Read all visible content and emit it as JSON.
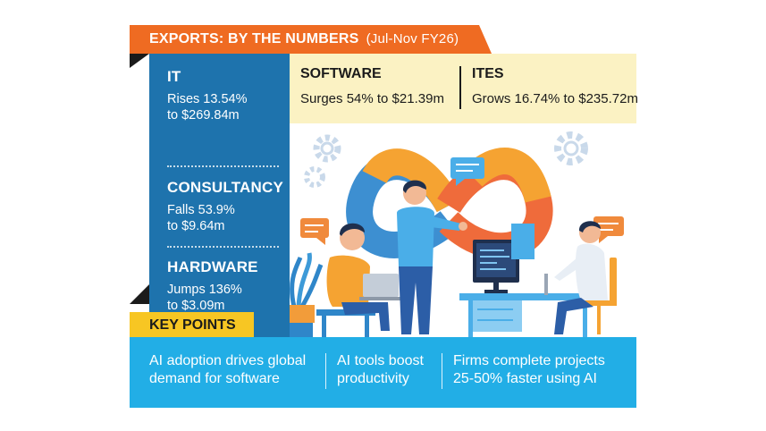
{
  "header": {
    "title": "EXPORTS: BY THE NUMBERS",
    "period": "(Jul-Nov FY26)"
  },
  "left_stats": [
    {
      "label": "IT",
      "line1": "Rises 13.54%",
      "line2": "to $269.84m"
    },
    {
      "label": "CONSULTANCY",
      "line1": "Falls 53.9%",
      "line2": "to $9.64m"
    },
    {
      "label": "HARDWARE",
      "line1": "Jumps 136%",
      "line2": "to $3.09m"
    }
  ],
  "top_stats": [
    {
      "label": "SOFTWARE",
      "text": "Surges 54% to $21.39m"
    },
    {
      "label": "ITES",
      "text": "Grows 16.74% to $235.72m"
    }
  ],
  "key_points": {
    "title": "KEY POINTS",
    "items": [
      {
        "line1": "AI adoption drives global",
        "line2": "demand for software"
      },
      {
        "line1": "AI tools boost",
        "line2": "productivity"
      },
      {
        "line1": "Firms complete projects",
        "line2": "25-50% faster using AI"
      }
    ]
  },
  "colors": {
    "ribbon": "#ef6b22",
    "left_panel": "#1e73ad",
    "top_panel": "#fbf2c3",
    "key_tab": "#f7c623",
    "bottom_band": "#22aee6"
  }
}
